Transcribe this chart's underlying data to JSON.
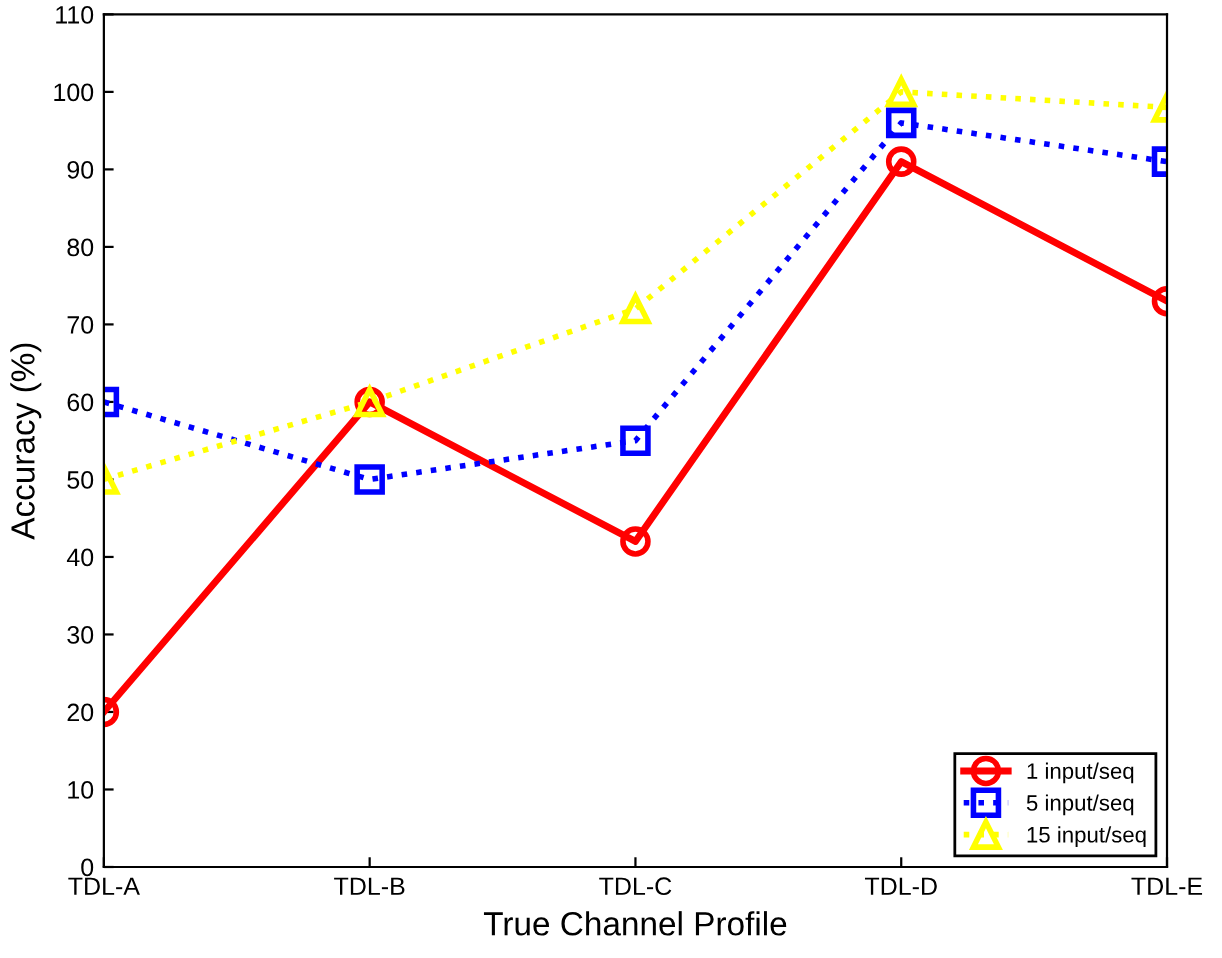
{
  "chart_data": {
    "type": "line",
    "xlabel": "True Channel Profile",
    "ylabel": "Accuracy (%)",
    "categories": [
      "TDL-A",
      "TDL-B",
      "TDL-C",
      "TDL-D",
      "TDL-E"
    ],
    "series": [
      {
        "name": "1 input/seq",
        "color": "#ff0000",
        "values": [
          20,
          60,
          42,
          91,
          73
        ],
        "marker": "circle",
        "line_style": "solid"
      },
      {
        "name": "5 input/seq",
        "color": "#0000ff",
        "values": [
          60,
          50,
          55,
          96,
          91
        ],
        "marker": "square",
        "line_style": "dotted"
      },
      {
        "name": "15 input/seq",
        "color": "#ffff00",
        "values": [
          50,
          60,
          72,
          100,
          98
        ],
        "marker": "triangle",
        "line_style": "dotted"
      }
    ],
    "ylim": [
      0,
      110
    ],
    "yticks": [
      0,
      10,
      20,
      30,
      40,
      50,
      60,
      70,
      80,
      90,
      100,
      110
    ],
    "grid": false,
    "legend": "bottom right"
  }
}
